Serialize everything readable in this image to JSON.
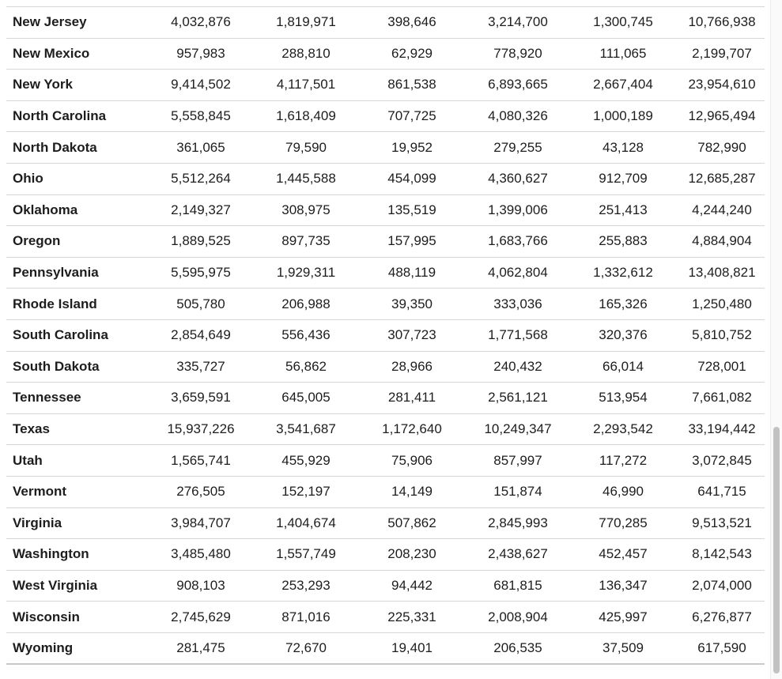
{
  "table": {
    "rows": [
      {
        "state": "New Jersey",
        "values": [
          "4,032,876",
          "1,819,971",
          "398,646",
          "3,214,700",
          "1,300,745",
          "10,766,938"
        ]
      },
      {
        "state": "New Mexico",
        "values": [
          "957,983",
          "288,810",
          "62,929",
          "778,920",
          "111,065",
          "2,199,707"
        ]
      },
      {
        "state": "New York",
        "values": [
          "9,414,502",
          "4,117,501",
          "861,538",
          "6,893,665",
          "2,667,404",
          "23,954,610"
        ]
      },
      {
        "state": "North Carolina",
        "values": [
          "5,558,845",
          "1,618,409",
          "707,725",
          "4,080,326",
          "1,000,189",
          "12,965,494"
        ]
      },
      {
        "state": "North Dakota",
        "values": [
          "361,065",
          "79,590",
          "19,952",
          "279,255",
          "43,128",
          "782,990"
        ]
      },
      {
        "state": "Ohio",
        "values": [
          "5,512,264",
          "1,445,588",
          "454,099",
          "4,360,627",
          "912,709",
          "12,685,287"
        ]
      },
      {
        "state": "Oklahoma",
        "values": [
          "2,149,327",
          "308,975",
          "135,519",
          "1,399,006",
          "251,413",
          "4,244,240"
        ]
      },
      {
        "state": "Oregon",
        "values": [
          "1,889,525",
          "897,735",
          "157,995",
          "1,683,766",
          "255,883",
          "4,884,904"
        ]
      },
      {
        "state": "Pennsylvania",
        "values": [
          "5,595,975",
          "1,929,311",
          "488,119",
          "4,062,804",
          "1,332,612",
          "13,408,821"
        ]
      },
      {
        "state": "Rhode Island",
        "values": [
          "505,780",
          "206,988",
          "39,350",
          "333,036",
          "165,326",
          "1,250,480"
        ]
      },
      {
        "state": "South Carolina",
        "values": [
          "2,854,649",
          "556,436",
          "307,723",
          "1,771,568",
          "320,376",
          "5,810,752"
        ]
      },
      {
        "state": "South Dakota",
        "values": [
          "335,727",
          "56,862",
          "28,966",
          "240,432",
          "66,014",
          "728,001"
        ]
      },
      {
        "state": "Tennessee",
        "values": [
          "3,659,591",
          "645,005",
          "281,411",
          "2,561,121",
          "513,954",
          "7,661,082"
        ]
      },
      {
        "state": "Texas",
        "values": [
          "15,937,226",
          "3,541,687",
          "1,172,640",
          "10,249,347",
          "2,293,542",
          "33,194,442"
        ]
      },
      {
        "state": "Utah",
        "values": [
          "1,565,741",
          "455,929",
          "75,906",
          "857,997",
          "117,272",
          "3,072,845"
        ]
      },
      {
        "state": "Vermont",
        "values": [
          "276,505",
          "152,197",
          "14,149",
          "151,874",
          "46,990",
          "641,715"
        ]
      },
      {
        "state": "Virginia",
        "values": [
          "3,984,707",
          "1,404,674",
          "507,862",
          "2,845,993",
          "770,285",
          "9,513,521"
        ]
      },
      {
        "state": "Washington",
        "values": [
          "3,485,480",
          "1,557,749",
          "208,230",
          "2,438,627",
          "452,457",
          "8,142,543"
        ]
      },
      {
        "state": "West Virginia",
        "values": [
          "908,103",
          "253,293",
          "94,442",
          "681,815",
          "136,347",
          "2,074,000"
        ]
      },
      {
        "state": "Wisconsin",
        "values": [
          "2,745,629",
          "871,016",
          "225,331",
          "2,008,904",
          "425,997",
          "6,276,877"
        ]
      },
      {
        "state": "Wyoming",
        "values": [
          "281,475",
          "72,670",
          "19,401",
          "206,535",
          "37,509",
          "617,590"
        ]
      }
    ]
  },
  "colors": {
    "text": "#1d1d1f",
    "row_border": "#d6d6d6",
    "scrollbar_thumb": "#c2c2c2"
  }
}
